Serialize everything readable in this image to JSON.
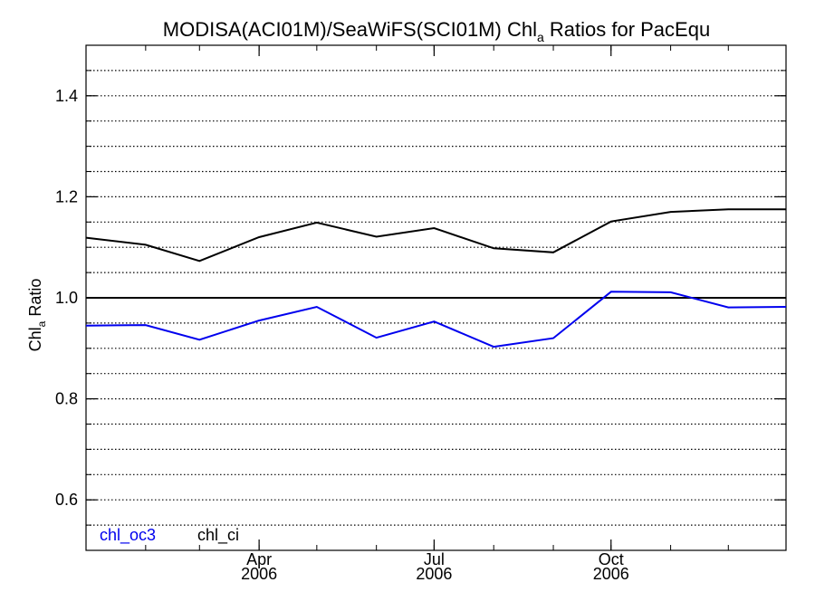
{
  "chart_data": {
    "type": "line",
    "title_parts": {
      "main": "MODISA(ACI01M)/SeaWiFS(SCI01M)  Chl",
      "sub": "a",
      "tail": " Ratios for PacEqu"
    },
    "ylabel_parts": {
      "main": "Chl",
      "sub": "a",
      "tail": " Ratio"
    },
    "xlabel": "",
    "ylim": [
      0.5,
      1.5
    ],
    "xlim": [
      "2006-01-01",
      "2006-12-31"
    ],
    "y_ticks": [
      {
        "value": 0.6,
        "label": "0.6"
      },
      {
        "value": 0.8,
        "label": "0.8"
      },
      {
        "value": 1.0,
        "label": "1.0"
      },
      {
        "value": 1.2,
        "label": "1.2"
      },
      {
        "value": 1.4,
        "label": "1.4"
      }
    ],
    "x_ticks": [
      {
        "date": "2006-04-01",
        "label": "Apr",
        "year": "2006"
      },
      {
        "date": "2006-07-01",
        "label": "Jul",
        "year": "2006"
      },
      {
        "date": "2006-10-01",
        "label": "Oct",
        "year": "2006"
      }
    ],
    "grid": "horizontal dotted every 0.05",
    "reference_line": 1.0,
    "legend_position": "bottom-left",
    "x": [
      "2006-01-01",
      "2006-02-01",
      "2006-03-01",
      "2006-04-01",
      "2006-05-01",
      "2006-06-01",
      "2006-07-01",
      "2006-08-01",
      "2006-09-01",
      "2006-10-01",
      "2006-11-01",
      "2006-12-01",
      "2006-12-31"
    ],
    "series": [
      {
        "name": "chl_oc3",
        "color": "#0000ee",
        "values": [
          0.945,
          0.946,
          0.917,
          0.955,
          0.982,
          0.921,
          0.953,
          0.903,
          0.92,
          1.012,
          1.011,
          0.981,
          0.982
        ]
      },
      {
        "name": "chl_ci",
        "color": "#000000",
        "values": [
          1.119,
          1.105,
          1.073,
          1.12,
          1.149,
          1.121,
          1.138,
          1.098,
          1.09,
          1.151,
          1.17,
          1.175,
          1.175
        ]
      }
    ]
  }
}
